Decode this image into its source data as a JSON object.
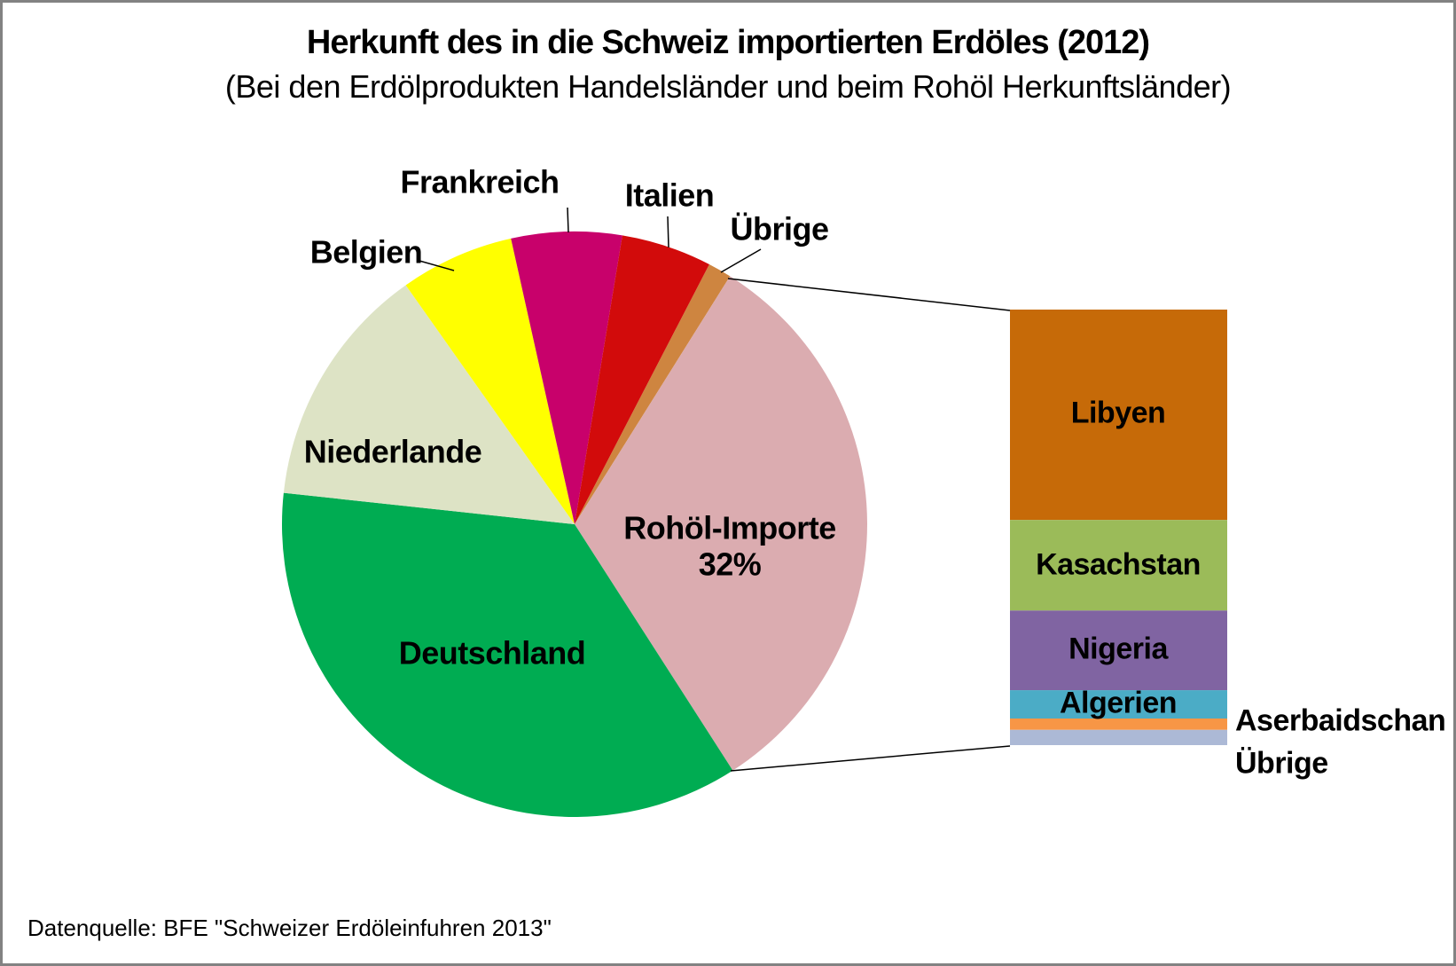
{
  "header": {
    "title": "Herkunft des in die Schweiz importierten Erdöles (2012)",
    "subtitle": "(Bei den Erdölprodukten Handelsländer und beim Rohöl Herkunftsländer)"
  },
  "footer": {
    "source": "Datenquelle: BFE \"Schweizer Erdöleinfuhren 2013\""
  },
  "chart_data": {
    "type": "pie",
    "title": "Herkunft des in die Schweiz importierten Erdöles (2012)",
    "subtitle": "(Bei den Erdölprodukten Handelsländer und beim Rohöl Herkunftsländer)",
    "legend_position": "labels-on-chart",
    "pie": {
      "start_angle_deg": 27.4,
      "direction": "clockwise",
      "unit": "percent of Swiss oil imports 2012",
      "slices": [
        {
          "label": "Übrige",
          "value_pct": 1.3,
          "color": "#CE8540"
        },
        {
          "label": "Rohöl-Importe",
          "value_pct": 32.0,
          "value_label": "32%",
          "color": "#DBACB0"
        },
        {
          "label": "Deutschland",
          "value_pct": 35.8,
          "color": "#00AC52"
        },
        {
          "label": "Niederlande",
          "value_pct": 13.5,
          "color": "#DDE3C5"
        },
        {
          "label": "Belgien",
          "value_pct": 6.3,
          "color": "#FFFF00"
        },
        {
          "label": "Frankreich",
          "value_pct": 6.1,
          "color": "#C8016B"
        },
        {
          "label": "Italien",
          "value_pct": 5.0,
          "color": "#D20B0B"
        }
      ]
    },
    "breakdown_bar": {
      "of_slice": "Rohöl-Importe",
      "unit": "share of crude-oil imports, percent",
      "segments": [
        {
          "label": "Libyen",
          "share_pct": 48.3,
          "color": "#C66A08"
        },
        {
          "label": "Kasachstan",
          "share_pct": 20.8,
          "color": "#9BBB59"
        },
        {
          "label": "Nigeria",
          "share_pct": 18.3,
          "color": "#8064A2"
        },
        {
          "label": "Algerien",
          "share_pct": 6.5,
          "color": "#4BACC6"
        },
        {
          "label": "Aserbaidschan",
          "share_pct": 2.6,
          "color": "#F79646"
        },
        {
          "label": "Übrige",
          "share_pct": 3.5,
          "color": "#ACB9D6"
        }
      ]
    }
  }
}
